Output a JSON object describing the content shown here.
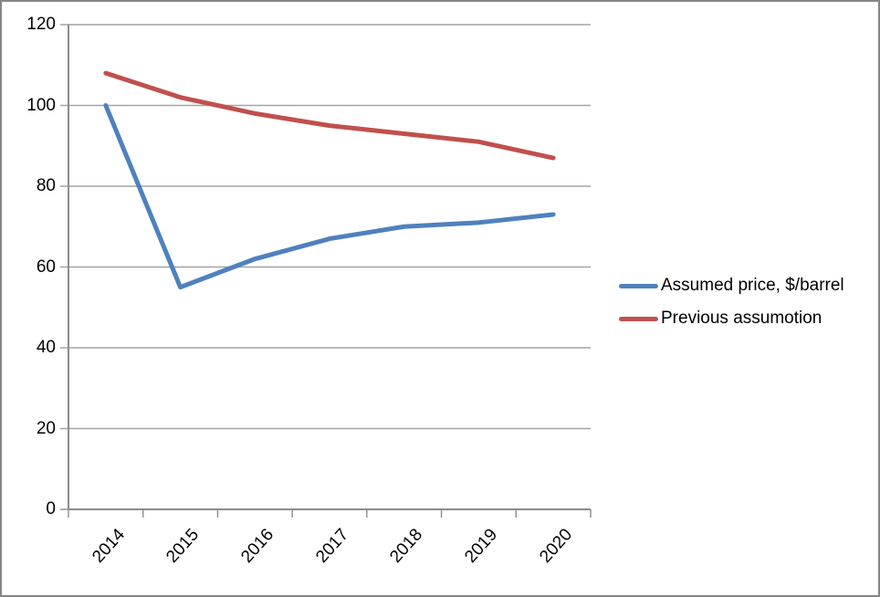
{
  "chart_data": {
    "type": "line",
    "title": "",
    "xlabel": "",
    "ylabel": "",
    "categories": [
      "2014",
      "2015",
      "2016",
      "2017",
      "2018",
      "2019",
      "2020"
    ],
    "series": [
      {
        "name": "Assumed price, $/barrel",
        "color": "#4F81BD",
        "values": [
          100,
          55,
          62,
          67,
          70,
          71,
          73
        ]
      },
      {
        "name": "Previous assumotion",
        "color": "#C0504D",
        "values": [
          108,
          102,
          98,
          95,
          93,
          91,
          87
        ]
      }
    ],
    "ylim": [
      0,
      120
    ],
    "yticks": [
      0,
      20,
      40,
      60,
      80,
      100,
      120
    ],
    "grid": "horizontal",
    "legend_position": "right"
  },
  "colors": {
    "grid": "#A3A3A3",
    "axis": "#8C8C8C",
    "frame": "#858585",
    "text": "#000000",
    "background": "#FFFFFF"
  }
}
